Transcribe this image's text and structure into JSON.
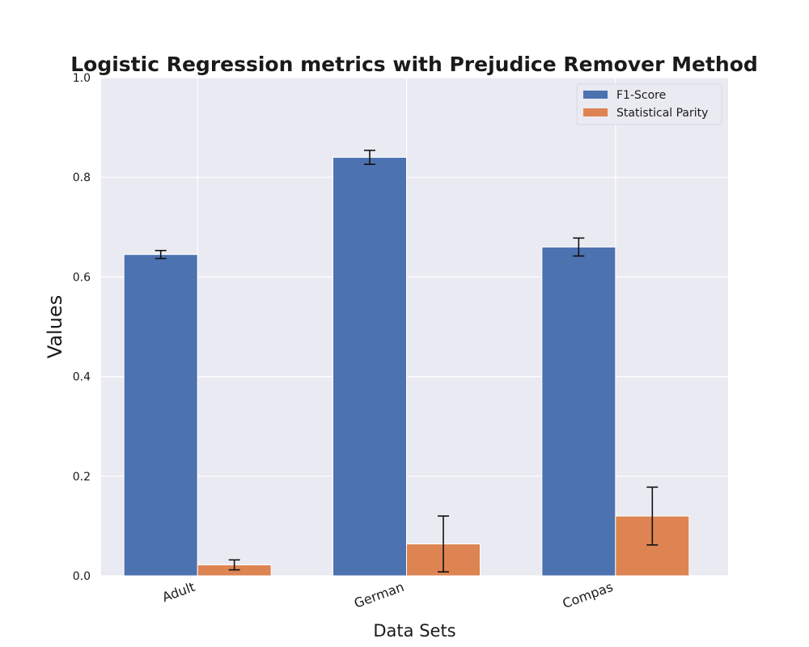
{
  "chart_data": {
    "type": "bar",
    "title": "Logistic Regression metrics with Prejudice Remover Method",
    "xlabel": "Data Sets",
    "ylabel": "Values",
    "categories": [
      "Adult",
      "German",
      "Compas"
    ],
    "series": [
      {
        "name": "F1-Score",
        "color": "#4c72b0",
        "values": [
          0.645,
          0.84,
          0.66
        ],
        "errors": [
          0.008,
          0.014,
          0.018
        ]
      },
      {
        "name": "Statistical Parity",
        "color": "#dd8452",
        "values": [
          0.022,
          0.064,
          0.12
        ],
        "errors": [
          0.01,
          0.056,
          0.058
        ]
      }
    ],
    "ylim": [
      0,
      1.0
    ],
    "yticks": [
      "0.0",
      "0.2",
      "0.4",
      "0.6",
      "0.8",
      "1.0"
    ],
    "grid": true,
    "legend_position": "top-right",
    "background": "#eaeaf2"
  }
}
